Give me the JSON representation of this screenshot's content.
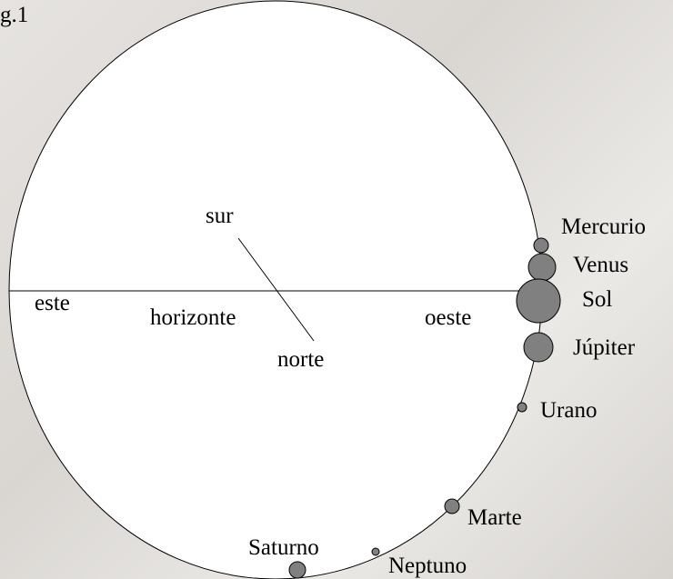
{
  "figure_label": "g.1",
  "directions": {
    "south": "sur",
    "north": "norte",
    "east": "este",
    "west": "oeste",
    "horizon": "horizonte"
  },
  "bodies": [
    {
      "name": "Mercurio"
    },
    {
      "name": "Venus"
    },
    {
      "name": "Sol"
    },
    {
      "name": "Júpiter"
    },
    {
      "name": "Urano"
    },
    {
      "name": "Marte"
    },
    {
      "name": "Neptuno"
    },
    {
      "name": "Saturno"
    }
  ]
}
